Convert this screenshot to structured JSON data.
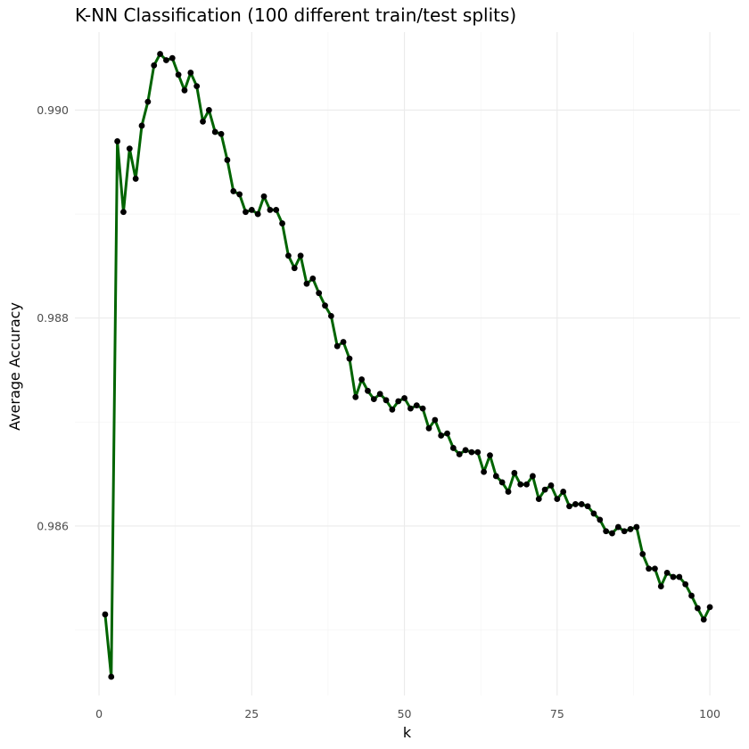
{
  "chart_data": {
    "type": "line",
    "title": "K-NN Classification (100 different train/test splits)",
    "xlabel": "k",
    "ylabel": "Average Accuracy",
    "xlim": [
      -3.95,
      104.95
    ],
    "ylim": [
      0.98437,
      0.99075
    ],
    "x_ticks": [
      0,
      25,
      50,
      75,
      100
    ],
    "x_tick_labels": [
      "0",
      "25",
      "50",
      "75",
      "100"
    ],
    "y_ticks": [
      0.986,
      0.988,
      0.99
    ],
    "y_tick_labels": [
      "0.986",
      "0.988",
      "0.990"
    ],
    "x_minor_ticks": [
      12.5,
      37.5,
      62.5,
      87.5
    ],
    "y_minor_ticks": [
      0.985,
      0.987,
      0.989
    ],
    "grid": true,
    "line_color": "#006400",
    "point_color": "#000000",
    "series": [
      {
        "x": [
          1,
          2,
          3,
          4,
          5,
          6,
          7,
          8,
          9,
          10,
          11,
          12,
          13,
          14,
          15,
          16,
          17,
          18,
          19,
          20,
          21,
          22,
          23,
          24,
          25,
          26,
          27,
          28,
          29,
          30,
          31,
          32,
          33,
          34,
          35,
          36,
          37,
          38,
          39,
          40,
          41,
          42,
          43,
          44,
          45,
          46,
          47,
          48,
          49,
          50,
          51,
          52,
          53,
          54,
          55,
          56,
          57,
          58,
          59,
          60,
          61,
          62,
          63,
          64,
          65,
          66,
          67,
          68,
          69,
          70,
          71,
          72,
          73,
          74,
          75,
          76,
          77,
          78,
          79,
          80,
          81,
          82,
          83,
          84,
          85,
          86,
          87,
          88,
          89,
          90,
          91,
          92,
          93,
          94,
          95,
          96,
          97,
          98,
          99,
          100
        ],
        "values": [
          0.98515,
          0.98455,
          0.9897,
          0.98902,
          0.98963,
          0.98934,
          0.98985,
          0.99008,
          0.99043,
          0.99054,
          0.99048,
          0.9905,
          0.99034,
          0.99019,
          0.99036,
          0.99023,
          0.98989,
          0.99,
          0.98979,
          0.98977,
          0.98952,
          0.98922,
          0.98919,
          0.98902,
          0.98904,
          0.989,
          0.98917,
          0.98904,
          0.98904,
          0.98891,
          0.9886,
          0.98848,
          0.9886,
          0.98833,
          0.98838,
          0.98824,
          0.98812,
          0.98802,
          0.98773,
          0.98777,
          0.98761,
          0.98724,
          0.98741,
          0.9873,
          0.98722,
          0.98727,
          0.98721,
          0.98712,
          0.9872,
          0.98723,
          0.98713,
          0.98716,
          0.98713,
          0.98694,
          0.98702,
          0.98687,
          0.98689,
          0.98675,
          0.98669,
          0.98673,
          0.98671,
          0.98671,
          0.98652,
          0.98668,
          0.98648,
          0.98642,
          0.98633,
          0.98651,
          0.9864,
          0.9864,
          0.98648,
          0.98626,
          0.98635,
          0.98639,
          0.98626,
          0.98633,
          0.98619,
          0.98621,
          0.98621,
          0.98619,
          0.98612,
          0.98606,
          0.98595,
          0.98593,
          0.98599,
          0.98595,
          0.98597,
          0.98599,
          0.98573,
          0.98559,
          0.98559,
          0.98542,
          0.98555,
          0.98551,
          0.98551,
          0.98544,
          0.98533,
          0.98521,
          0.9851,
          0.98522
        ]
      }
    ]
  }
}
